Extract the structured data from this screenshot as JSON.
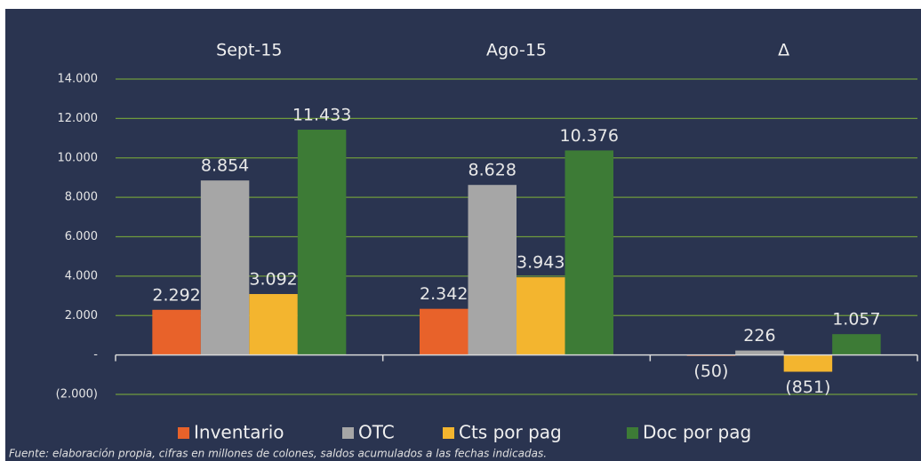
{
  "chart_data": {
    "type": "bar",
    "categories": [
      "Sept-15",
      "Ago-15",
      "Δ"
    ],
    "series": [
      {
        "name": "Inventario",
        "color": "#e8622a",
        "values": [
          2292,
          2342,
          -50
        ],
        "value_labels": [
          "2.292",
          "2.342",
          "(50)"
        ]
      },
      {
        "name": "OTC",
        "color": "#a6a6a6",
        "values": [
          8854,
          8628,
          226
        ],
        "value_labels": [
          "8.854",
          "8.628",
          "226"
        ]
      },
      {
        "name": "Cts por pag",
        "color": "#f3b52f",
        "values": [
          3092,
          3943,
          -851
        ],
        "value_labels": [
          "3.092",
          "3.943",
          "(851)"
        ]
      },
      {
        "name": "Doc por pag",
        "color": "#3d7b36",
        "values": [
          11433,
          10376,
          1057
        ],
        "value_labels": [
          "11.433",
          "10.376",
          "1.057"
        ]
      }
    ],
    "ylim": [
      -2000,
      14000
    ],
    "yticks": [
      {
        "value": -2000,
        "label": "(2.000)"
      },
      {
        "value": 0,
        "label": "-"
      },
      {
        "value": 2000,
        "label": "2.000"
      },
      {
        "value": 4000,
        "label": "4.000"
      },
      {
        "value": 6000,
        "label": "6.000"
      },
      {
        "value": 8000,
        "label": "8.000"
      },
      {
        "value": 10000,
        "label": "10.000"
      },
      {
        "value": 12000,
        "label": "12.000"
      },
      {
        "value": 14000,
        "label": "14.000"
      }
    ],
    "grid": true,
    "legend": "bottom",
    "source": "Fuente: elaboración propia, cifras en millones de colones, saldos acumulados a las fechas indicadas."
  }
}
